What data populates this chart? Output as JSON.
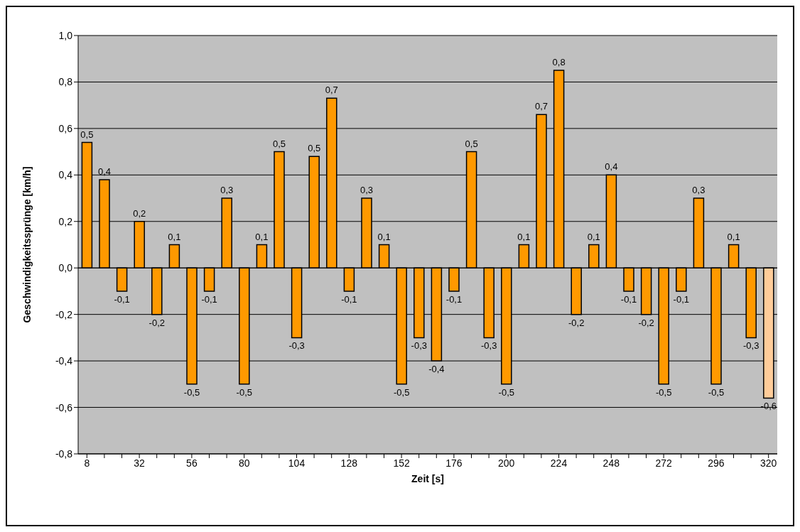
{
  "chart_data": {
    "type": "bar",
    "xlabel": "Zeit [s]",
    "ylabel": "Geschwindigkeitssprünge [km/h]",
    "categories": [
      "8",
      null,
      null,
      "32",
      null,
      null,
      "56",
      null,
      null,
      "80",
      null,
      null,
      "104",
      null,
      null,
      "128",
      null,
      null,
      "152",
      null,
      null,
      "176",
      null,
      null,
      "200",
      null,
      null,
      "224",
      null,
      null,
      "248",
      null,
      null,
      "272",
      null,
      null,
      "296",
      null,
      null,
      "320"
    ],
    "values": [
      0.54,
      0.38,
      -0.1,
      0.2,
      -0.2,
      0.1,
      -0.5,
      -0.1,
      0.3,
      -0.5,
      0.1,
      0.5,
      -0.3,
      0.48,
      0.73,
      -0.1,
      0.3,
      0.1,
      -0.5,
      -0.3,
      -0.4,
      -0.1,
      0.5,
      -0.3,
      -0.5,
      0.1,
      0.66,
      0.85,
      -0.2,
      0.1,
      0.4,
      -0.1,
      -0.2,
      -0.5,
      -0.1,
      0.3,
      -0.5,
      0.1,
      -0.3,
      -0.56
    ],
    "value_labels": [
      "0,5",
      "0,4",
      "-0,1",
      "0,2",
      "-0,2",
      "0,1",
      "-0,5",
      "-0,1",
      "0,3",
      "-0,5",
      "0,1",
      "0,5",
      "-0,3",
      "0,5",
      "0,7",
      "-0,1",
      "0,3",
      "0,1",
      "-0,5",
      "-0,3",
      "-0,4",
      "-0,1",
      "0,5",
      "-0,3",
      "-0,5",
      "0,1",
      "0,7",
      "0,8",
      "-0,2",
      "0,1",
      "0,4",
      "-0,1",
      "-0,2",
      "-0,5",
      "-0,1",
      "0,3",
      "-0,5",
      "0,1",
      "-0,3",
      "-0,6"
    ],
    "colors": [
      "#ff9900",
      "#ff9900",
      "#ff9900",
      "#ff9900",
      "#ff9900",
      "#ff9900",
      "#ff9900",
      "#ff9900",
      "#ff9900",
      "#ff9900",
      "#ff9900",
      "#ff9900",
      "#ff9900",
      "#ff9900",
      "#ff9900",
      "#ff9900",
      "#ff9900",
      "#ff9900",
      "#ff9900",
      "#ff9900",
      "#ff9900",
      "#ff9900",
      "#ff9900",
      "#ff9900",
      "#ff9900",
      "#ff9900",
      "#ff9900",
      "#ff9900",
      "#ff9900",
      "#ff9900",
      "#ff9900",
      "#ff9900",
      "#ff9900",
      "#ff9900",
      "#ff9900",
      "#ff9900",
      "#ff9900",
      "#ff9900",
      "#ff9900",
      "#ffcc99"
    ],
    "ylim": [
      -0.8,
      1.0
    ],
    "yticks": [
      {
        "value": -0.8,
        "label": "-0,8"
      },
      {
        "value": -0.6,
        "label": "-0,6"
      },
      {
        "value": -0.4,
        "label": "-0,4"
      },
      {
        "value": -0.2,
        "label": "-0,2"
      },
      {
        "value": 0,
        "label": "0,0"
      },
      {
        "value": 0.2,
        "label": "0,2"
      },
      {
        "value": 0.4,
        "label": "0,4"
      },
      {
        "value": 0.6,
        "label": "0,6"
      },
      {
        "value": 0.8,
        "label": "0,8"
      },
      {
        "value": 1.0,
        "label": "1,0"
      }
    ],
    "grid": "y",
    "legend": false
  }
}
